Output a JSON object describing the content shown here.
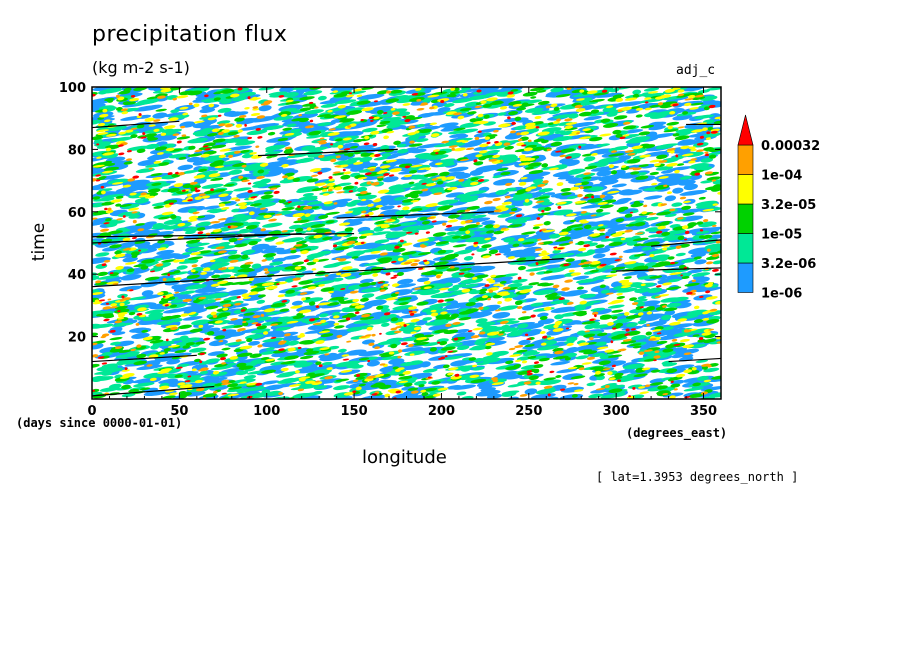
{
  "chart_data": {
    "type": "heatmap",
    "title": "precipitation flux",
    "units": "(kg m-2 s-1)",
    "run_label": "adj_c",
    "xlabel": "longitude",
    "ylabel": "time",
    "x_units": "(degrees_east)",
    "y_units": "(days since 0000-01-01)",
    "annotation": "[ lat=1.3953 degrees_north ]",
    "xlim": [
      0,
      360
    ],
    "ylim": [
      0,
      100
    ],
    "x_ticks": [
      "0",
      "50",
      "100",
      "150",
      "200",
      "250",
      "300",
      "350"
    ],
    "x_tick_values": [
      0,
      50,
      100,
      150,
      200,
      250,
      300,
      350
    ],
    "y_ticks": [
      "20",
      "40",
      "60",
      "80",
      "100"
    ],
    "y_tick_values": [
      20,
      40,
      60,
      80,
      100
    ],
    "colorbar": {
      "labels": [
        "1e-06",
        "3.2e-06",
        "1e-05",
        "3.2e-05",
        "1e-04",
        "0.00032"
      ],
      "colors": [
        "#1e9bff",
        "#00e896",
        "#00d200",
        "#ffff00",
        "#ffa000",
        "#ff0000",
        "#ff0000"
      ],
      "extend": "max"
    }
  }
}
